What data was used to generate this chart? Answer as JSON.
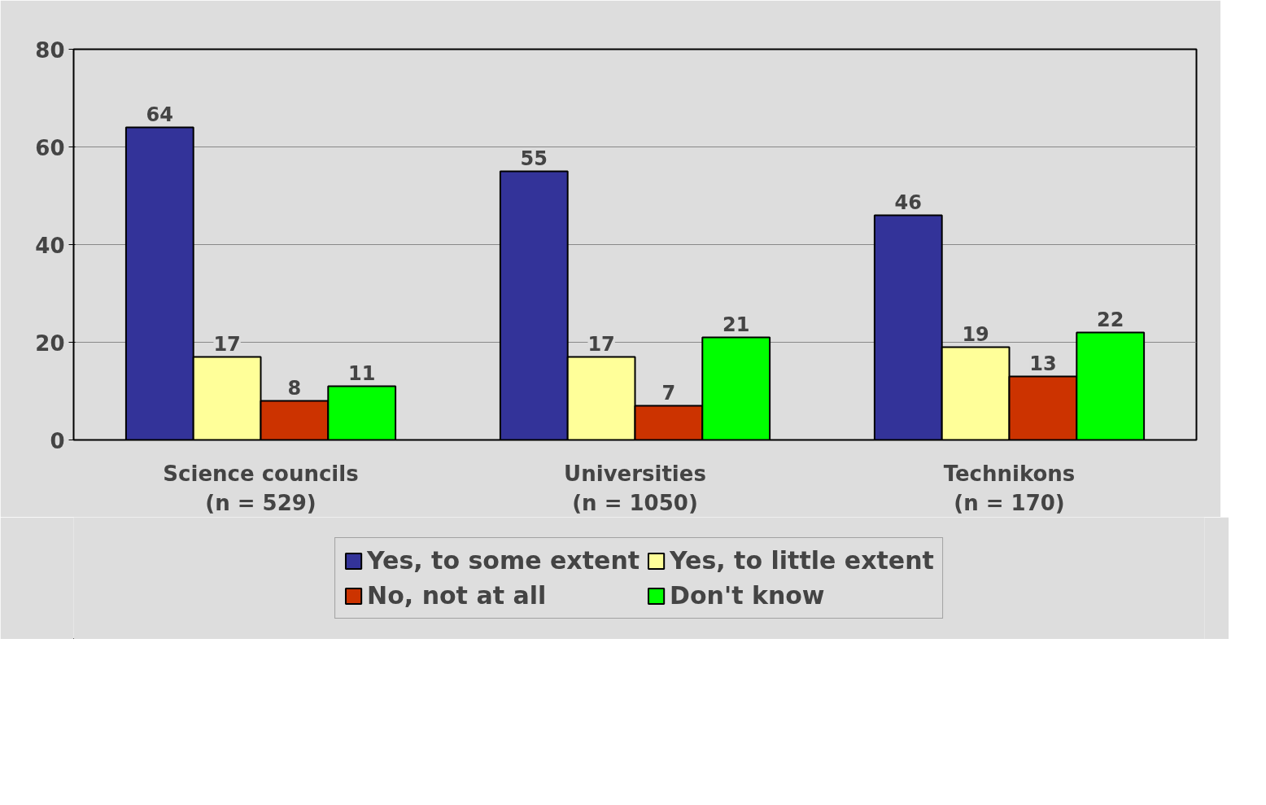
{
  "chart_data": {
    "type": "bar",
    "categories": [
      "Science councils\n(n = 529)",
      "Universities\n(n = 1050)",
      "Technikons\n(n = 170)"
    ],
    "series": [
      {
        "name": "Yes, to some extent",
        "color": "#333399",
        "values": [
          64,
          55,
          46
        ]
      },
      {
        "name": "Yes, to little extent",
        "color": "#ffff99",
        "values": [
          17,
          17,
          19
        ]
      },
      {
        "name": "No, not at all",
        "color": "#cc3300",
        "values": [
          8,
          7,
          13
        ]
      },
      {
        "name": "Don't know",
        "color": "#00ff00",
        "values": [
          11,
          21,
          22
        ]
      }
    ],
    "ylim": [
      0,
      80
    ],
    "yticks": [
      0,
      20,
      40,
      60,
      80
    ],
    "grid": "y",
    "legend": "bottom",
    "data_labels": true
  }
}
